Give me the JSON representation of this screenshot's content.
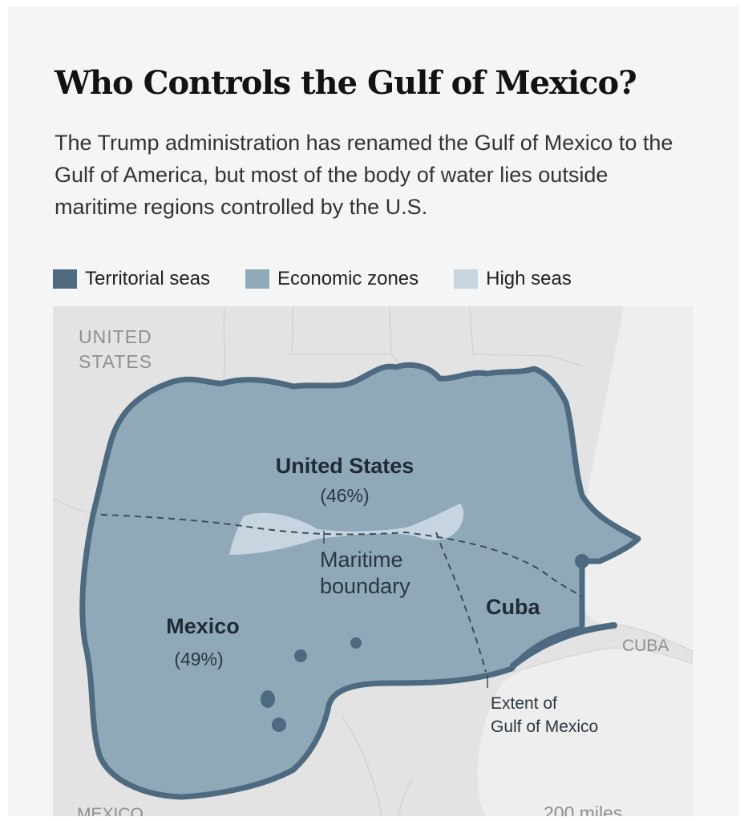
{
  "header": {
    "title": "Who Controls the Gulf of Mexico?",
    "subtitle": "The Trump administration has renamed the Gulf of Mexico to the Gulf of America, but most of the body of water lies outside maritime regions controlled by the U.S."
  },
  "legend": [
    {
      "label": "Territorial seas",
      "color": "#4d6a80"
    },
    {
      "label": "Economic zones",
      "color": "#8fa9b9"
    },
    {
      "label": "High seas",
      "color": "#c7d5e0"
    }
  ],
  "map": {
    "country_labels": {
      "united_states": "UNITED\nSTATES",
      "cuba": "CUBA",
      "mexico": "MEXICO"
    },
    "zones": {
      "us": {
        "name": "United States",
        "share": "(46%)"
      },
      "mexico": {
        "name": "Mexico",
        "share": "(49%)"
      },
      "cuba": {
        "name": "Cuba"
      }
    },
    "annotations": {
      "maritime_boundary": "Maritime\nboundary",
      "extent": "Extent of\nGulf of Mexico"
    },
    "scale": "200 miles",
    "colors": {
      "land": "#e3e3e3",
      "water_outside": "#eeeeee",
      "economic_zone": "#8fa9b9",
      "territorial": "#4d6a80",
      "high_seas": "#c7d5e0",
      "label_gray": "#8f8f8f"
    }
  }
}
